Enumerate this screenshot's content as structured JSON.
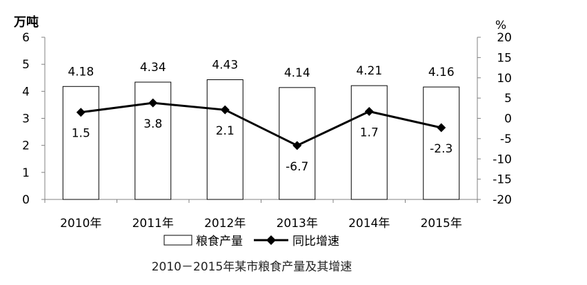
{
  "chart_data": {
    "type": "bar",
    "caption": "2010－2015年某市粮食产量及其增速",
    "categories": [
      "2010年",
      "2011年",
      "2012年",
      "2013年",
      "2014年",
      "2015年"
    ],
    "series": [
      {
        "name": "粮食产量",
        "type": "bar",
        "axis": "left",
        "values": [
          4.18,
          4.34,
          4.43,
          4.14,
          4.21,
          4.16
        ],
        "labels": [
          "4.18",
          "4.34",
          "4.43",
          "4.14",
          "4.21",
          "4.16"
        ]
      },
      {
        "name": "同比增速",
        "type": "line",
        "axis": "right",
        "values": [
          1.5,
          3.8,
          2.1,
          -6.7,
          1.7,
          -2.3
        ],
        "labels": [
          "1.5",
          "3.8",
          "2.1",
          "-6.7",
          "1.7",
          "-2.3"
        ]
      }
    ],
    "y_left": {
      "label": "万吨",
      "min": 0,
      "max": 6,
      "ticks": [
        0,
        1,
        2,
        3,
        4,
        5,
        6
      ]
    },
    "y_right": {
      "label": "%",
      "min": -20,
      "max": 20,
      "ticks": [
        -20,
        -15,
        -10,
        -5,
        0,
        5,
        10,
        15,
        20
      ]
    },
    "grid": false,
    "legend_position": "bottom",
    "colors": {
      "bar_fill": "#ffffff",
      "bar_stroke": "#000000",
      "line": "#000000",
      "axis": "#808080"
    }
  }
}
